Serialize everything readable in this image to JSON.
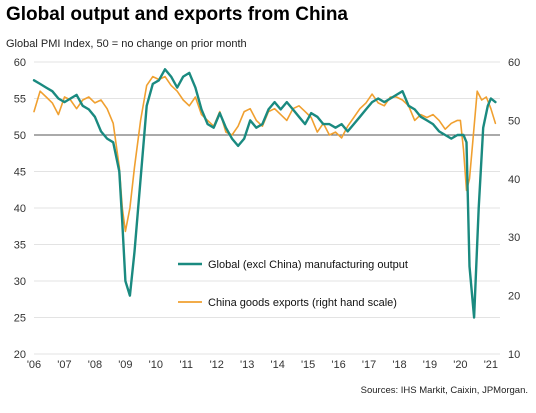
{
  "chart_data": {
    "type": "line",
    "title": "Global output and exports from China",
    "subtitle": "Global  PMI Index, 50 = no change on prior month",
    "source": "Sources: IHS Markit, Caixin, JPMorgan.",
    "x_ticks": [
      "'06",
      "'07",
      "'08",
      "'09",
      "'10",
      "'11",
      "'12",
      "'13",
      "'14",
      "'15",
      "'16",
      "'17",
      "'18",
      "'19",
      "'20",
      "'21"
    ],
    "xlim": [
      2006.0,
      2021.3
    ],
    "ylim_left": [
      20,
      60
    ],
    "ylim_right": [
      10,
      60
    ],
    "yticks_left": [
      20,
      25,
      30,
      35,
      40,
      45,
      50,
      55,
      60
    ],
    "yticks_right": [
      10,
      20,
      30,
      40,
      50,
      60
    ],
    "reference_line": {
      "axis": "left",
      "value": 50
    },
    "colors": {
      "global": "#1a8a80",
      "china": "#f0a030",
      "grid": "#c8c8c8",
      "reference": "#555555"
    },
    "legend": [
      {
        "series": "global",
        "label": "Global (excl China) manufacturing output"
      },
      {
        "series": "china",
        "label": "China goods exports (right hand scale)"
      }
    ],
    "series": [
      {
        "name": "Global (excl China) manufacturing output",
        "key": "global",
        "axis": "left",
        "x": [
          2006.0,
          2006.2,
          2006.4,
          2006.6,
          2006.8,
          2007.0,
          2007.2,
          2007.4,
          2007.6,
          2007.8,
          2008.0,
          2008.2,
          2008.4,
          2008.6,
          2008.8,
          2008.9,
          2009.0,
          2009.15,
          2009.3,
          2009.5,
          2009.7,
          2009.9,
          2010.1,
          2010.3,
          2010.5,
          2010.7,
          2010.9,
          2011.1,
          2011.3,
          2011.5,
          2011.7,
          2011.9,
          2012.1,
          2012.3,
          2012.5,
          2012.7,
          2012.9,
          2013.1,
          2013.3,
          2013.5,
          2013.7,
          2013.9,
          2014.1,
          2014.3,
          2014.5,
          2014.7,
          2014.9,
          2015.1,
          2015.3,
          2015.5,
          2015.7,
          2015.9,
          2016.1,
          2016.3,
          2016.5,
          2016.7,
          2016.9,
          2017.1,
          2017.3,
          2017.5,
          2017.7,
          2017.9,
          2018.1,
          2018.3,
          2018.5,
          2018.7,
          2018.9,
          2019.1,
          2019.3,
          2019.5,
          2019.7,
          2019.9,
          2020.1,
          2020.2,
          2020.3,
          2020.45,
          2020.6,
          2020.75,
          2020.9,
          2021.0,
          2021.15
        ],
        "values": [
          57.5,
          57.0,
          56.5,
          56.0,
          55.0,
          54.5,
          55.0,
          55.5,
          54.0,
          53.5,
          52.5,
          50.5,
          49.5,
          49.0,
          45.0,
          38.0,
          30.0,
          28.0,
          34.0,
          44.0,
          54.0,
          57.0,
          57.5,
          59.0,
          58.0,
          56.5,
          58.0,
          58.5,
          56.5,
          53.5,
          51.5,
          51.0,
          53.0,
          51.0,
          49.5,
          48.5,
          49.5,
          52.0,
          51.0,
          51.5,
          53.5,
          54.5,
          53.5,
          54.5,
          53.5,
          52.5,
          51.5,
          53.0,
          52.5,
          51.5,
          51.5,
          51.0,
          51.5,
          50.5,
          51.5,
          52.5,
          53.5,
          54.5,
          55.0,
          54.5,
          55.0,
          55.5,
          56.0,
          54.0,
          53.5,
          52.5,
          52.0,
          51.5,
          50.5,
          50.0,
          49.5,
          50.0,
          50.0,
          49.0,
          32.0,
          25.0,
          40.0,
          51.0,
          54.0,
          55.0,
          54.5
        ]
      },
      {
        "name": "China goods exports (right hand scale)",
        "key": "china",
        "axis": "right",
        "x": [
          2006.0,
          2006.2,
          2006.4,
          2006.6,
          2006.8,
          2007.0,
          2007.2,
          2007.4,
          2007.6,
          2007.8,
          2008.0,
          2008.2,
          2008.4,
          2008.6,
          2008.8,
          2008.9,
          2009.0,
          2009.15,
          2009.3,
          2009.5,
          2009.7,
          2009.9,
          2010.1,
          2010.3,
          2010.5,
          2010.7,
          2010.9,
          2011.1,
          2011.3,
          2011.5,
          2011.7,
          2011.9,
          2012.1,
          2012.3,
          2012.5,
          2012.7,
          2012.9,
          2013.1,
          2013.3,
          2013.5,
          2013.7,
          2013.9,
          2014.1,
          2014.3,
          2014.5,
          2014.7,
          2014.9,
          2015.1,
          2015.3,
          2015.5,
          2015.7,
          2015.9,
          2016.1,
          2016.3,
          2016.5,
          2016.7,
          2016.9,
          2017.1,
          2017.3,
          2017.5,
          2017.7,
          2017.9,
          2018.1,
          2018.3,
          2018.5,
          2018.7,
          2018.9,
          2019.1,
          2019.3,
          2019.5,
          2019.7,
          2019.9,
          2020.0,
          2020.1,
          2020.2,
          2020.3,
          2020.4,
          2020.55,
          2020.7,
          2020.85,
          2021.0,
          2021.15
        ],
        "values": [
          51.5,
          55.0,
          54.0,
          53.0,
          51.0,
          54.0,
          53.5,
          52.0,
          53.5,
          54.0,
          53.0,
          53.5,
          52.0,
          49.5,
          42.0,
          35.0,
          31.0,
          35.0,
          42.0,
          50.0,
          56.0,
          57.5,
          57.0,
          57.5,
          56.0,
          55.0,
          53.5,
          52.5,
          54.0,
          51.0,
          50.0,
          49.0,
          51.5,
          48.0,
          47.5,
          49.0,
          51.5,
          52.0,
          50.0,
          49.0,
          51.5,
          52.0,
          51.0,
          50.0,
          52.0,
          52.5,
          51.5,
          50.5,
          48.0,
          49.5,
          47.5,
          48.0,
          47.0,
          49.0,
          50.5,
          52.0,
          53.0,
          54.5,
          53.0,
          52.5,
          54.0,
          54.0,
          53.5,
          52.5,
          50.0,
          51.0,
          50.5,
          51.0,
          50.0,
          48.5,
          49.5,
          50.0,
          50.0,
          45.0,
          38.0,
          40.0,
          46.0,
          55.0,
          53.5,
          54.0,
          52.0,
          49.5
        ]
      }
    ]
  }
}
